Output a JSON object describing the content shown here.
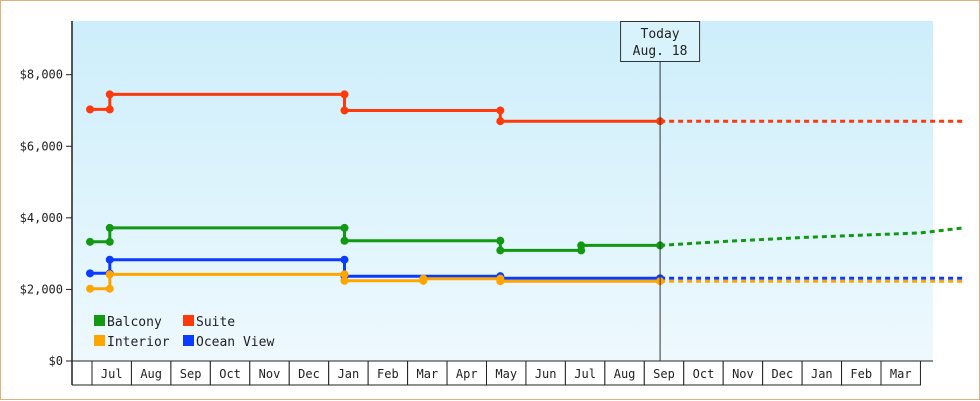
{
  "chart_data": {
    "type": "line",
    "step": true,
    "background_gradient": [
      "#cdeefb",
      "#eef9fe"
    ],
    "ylim": [
      0,
      9500
    ],
    "y_ticks": [
      {
        "value": 0,
        "label": "$0"
      },
      {
        "value": 2000,
        "label": "$2,000"
      },
      {
        "value": 4000,
        "label": "$4,000"
      },
      {
        "value": 6000,
        "label": "$6,000"
      },
      {
        "value": 8000,
        "label": "$8,000"
      }
    ],
    "x_months": [
      "Jul",
      "Aug",
      "Sep",
      "Oct",
      "Nov",
      "Dec",
      "Jan",
      "Feb",
      "Mar",
      "Apr",
      "May",
      "Jun",
      "Jul",
      "Aug",
      "Sep",
      "Oct",
      "Nov",
      "Dec",
      "Jan",
      "Feb",
      "Mar"
    ],
    "today": {
      "line1": "Today",
      "line2": "Aug. 18",
      "x": 13.9
    },
    "series": [
      {
        "name": "Suite",
        "color": "#ff3a0a",
        "points": [
          [
            -0.55,
            7030
          ],
          [
            -0.05,
            7030
          ],
          [
            -0.05,
            7450
          ],
          [
            5.9,
            7450
          ],
          [
            5.9,
            7000
          ],
          [
            9.85,
            7000
          ],
          [
            9.85,
            6700
          ],
          [
            13.9,
            6700
          ]
        ],
        "forecast": [
          [
            13.9,
            6700
          ],
          [
            21.6,
            6700
          ]
        ]
      },
      {
        "name": "Balcony",
        "color": "#119911",
        "points": [
          [
            -0.55,
            3330
          ],
          [
            -0.05,
            3330
          ],
          [
            -0.05,
            3720
          ],
          [
            5.9,
            3720
          ],
          [
            5.9,
            3360
          ],
          [
            9.85,
            3360
          ],
          [
            9.85,
            3090
          ],
          [
            11.9,
            3090
          ],
          [
            11.9,
            3230
          ],
          [
            13.9,
            3230
          ]
        ],
        "forecast": [
          [
            13.9,
            3230
          ],
          [
            15.5,
            3340
          ],
          [
            17.5,
            3450
          ],
          [
            20.5,
            3580
          ],
          [
            21.6,
            3720
          ]
        ]
      },
      {
        "name": "Ocean View",
        "color": "#0a3bff",
        "points": [
          [
            -0.55,
            2450
          ],
          [
            -0.05,
            2450
          ],
          [
            -0.05,
            2830
          ],
          [
            5.9,
            2830
          ],
          [
            5.9,
            2370
          ],
          [
            9.85,
            2370
          ],
          [
            9.85,
            2310
          ],
          [
            13.9,
            2310
          ]
        ],
        "forecast": [
          [
            13.9,
            2310
          ],
          [
            21.6,
            2310
          ]
        ]
      },
      {
        "name": "Interior",
        "color": "#ffa500",
        "points": [
          [
            -0.55,
            2020
          ],
          [
            -0.05,
            2020
          ],
          [
            -0.05,
            2420
          ],
          [
            5.9,
            2420
          ],
          [
            5.9,
            2240
          ],
          [
            7.9,
            2240
          ],
          [
            7.9,
            2300
          ],
          [
            9.85,
            2300
          ],
          [
            9.85,
            2230
          ],
          [
            13.9,
            2230
          ]
        ],
        "forecast": [
          [
            13.9,
            2230
          ],
          [
            21.6,
            2230
          ]
        ]
      }
    ],
    "legend": [
      {
        "label": "Balcony",
        "color": "#119911"
      },
      {
        "label": "Suite",
        "color": "#ff3a0a"
      },
      {
        "label": "Interior",
        "color": "#ffa500"
      },
      {
        "label": "Ocean View",
        "color": "#0a3bff"
      }
    ],
    "legend_placement": "bottom-left",
    "grid": false
  }
}
